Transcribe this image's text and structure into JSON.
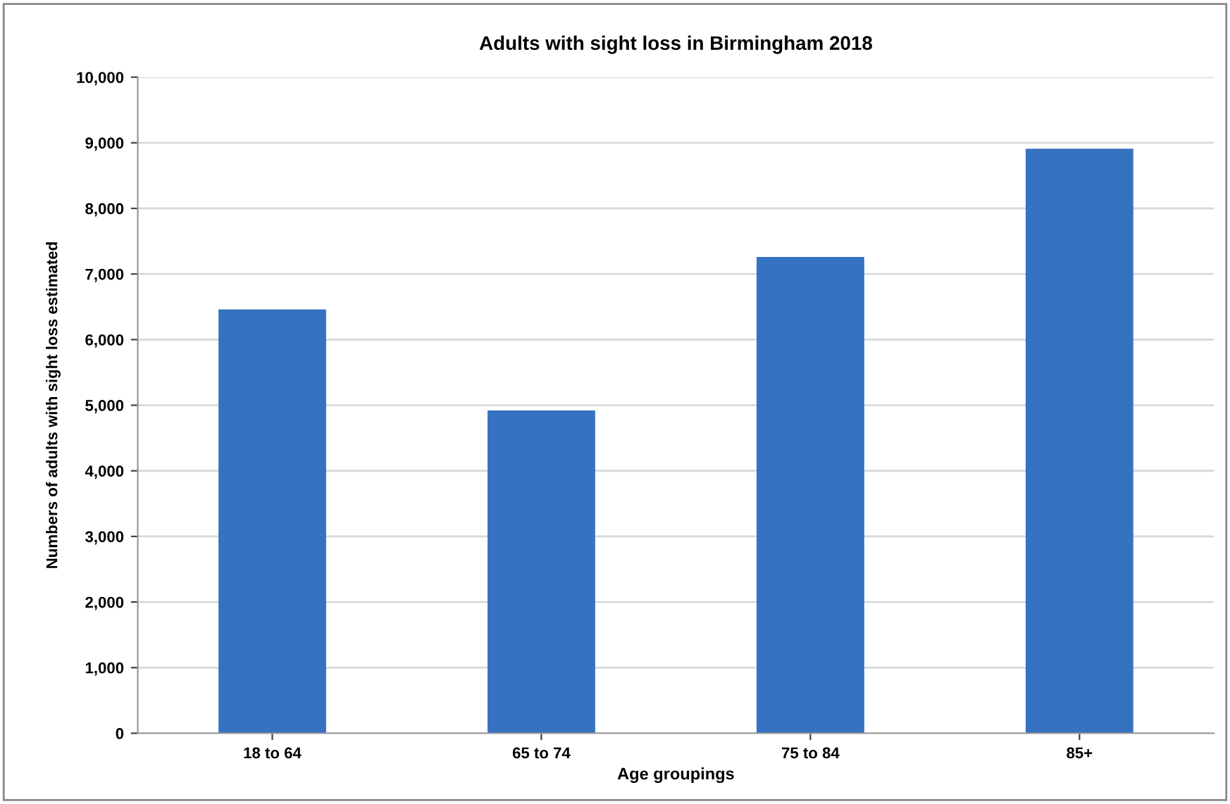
{
  "chart_data": {
    "type": "bar",
    "title": "Adults with sight loss in Birmingham 2018",
    "xlabel": "Age groupings",
    "ylabel": "Numbers of adults with sight loss estimated",
    "categories": [
      "18 to 64",
      "65 to 74",
      "75 to 84",
      "85+"
    ],
    "values": [
      6460,
      4920,
      7260,
      8910
    ],
    "color": "#3572c2",
    "ylim": [
      0,
      10000
    ],
    "yticks": [
      {
        "value": 0,
        "label": "0"
      },
      {
        "value": 1000,
        "label": "1,000"
      },
      {
        "value": 2000,
        "label": "2,000"
      },
      {
        "value": 3000,
        "label": "3,000"
      },
      {
        "value": 4000,
        "label": "4,000"
      },
      {
        "value": 5000,
        "label": "5,000"
      },
      {
        "value": 6000,
        "label": "6,000"
      },
      {
        "value": 7000,
        "label": "7,000"
      },
      {
        "value": 8000,
        "label": "8,000"
      },
      {
        "value": 9000,
        "label": "9,000"
      },
      {
        "value": 10000,
        "label": "10,000"
      }
    ],
    "grid": "y"
  }
}
